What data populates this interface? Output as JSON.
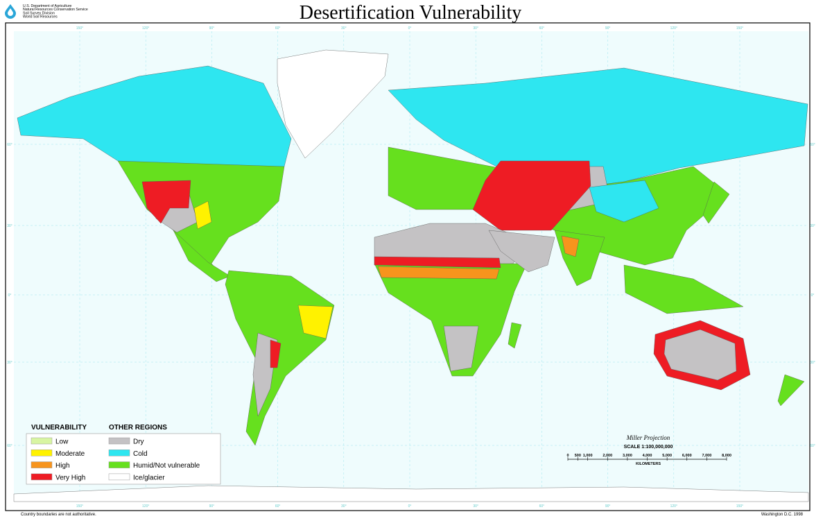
{
  "header": {
    "agency_lines": [
      "U.S. Department of Agriculture",
      "Natural Resources Conservation Service",
      "Soil Survey Division",
      "World Soil Resources"
    ],
    "title": "Desertification Vulnerability"
  },
  "legend": {
    "vulnerability": {
      "heading": "VULNERABILITY",
      "items": [
        {
          "label": "Low",
          "color": "#d8f5a2"
        },
        {
          "label": "Moderate",
          "color": "#fff200"
        },
        {
          "label": "High",
          "color": "#f7941d"
        },
        {
          "label": "Very High",
          "color": "#ee1c24"
        }
      ]
    },
    "other_regions": {
      "heading": "OTHER REGIONS",
      "items": [
        {
          "label": "Dry",
          "color": "#c4c2c4"
        },
        {
          "label": "Cold",
          "color": "#2ee6f0"
        },
        {
          "label": "Humid/Not vulnerable",
          "color": "#66e01e"
        },
        {
          "label": "Ice/glacier",
          "color": "#ffffff"
        }
      ]
    }
  },
  "scale": {
    "projection": "Miller Projection",
    "scale": "SCALE 1:100,000,000",
    "unit": "KILOMETERS",
    "ticks": [
      0,
      500,
      {
        "value": 1000,
        "label": "1,000"
      },
      {
        "value": 2000,
        "label": "2,000"
      },
      {
        "value": 3000,
        "label": "3,000"
      },
      {
        "value": 4000,
        "label": "4,000"
      },
      {
        "value": 5000,
        "label": "5,000"
      },
      {
        "value": 6000,
        "label": "6,000"
      },
      {
        "value": 7000,
        "label": "7,000"
      },
      {
        "value": 8000,
        "label": "8,000"
      }
    ]
  },
  "graticule": {
    "longitudes": [
      "150°",
      "120°",
      "90°",
      "60°",
      "30°",
      "0°",
      "30°",
      "60°",
      "90°",
      "120°",
      "150°"
    ],
    "latitudes": [
      "60°",
      "30°",
      "0°",
      "30°",
      "60°"
    ]
  },
  "footer": {
    "left": "Country boundaries are not authoritative.",
    "right": "Washington D.C. 1998"
  }
}
